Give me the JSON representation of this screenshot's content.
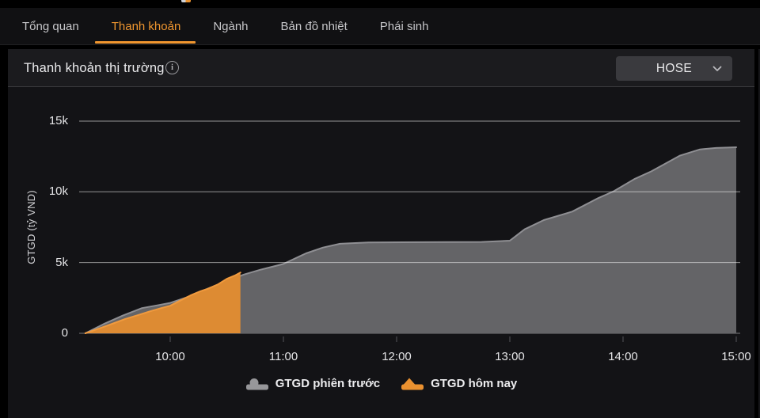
{
  "tabs": [
    {
      "label": "Tổng quan",
      "active": false
    },
    {
      "label": "Thanh khoản",
      "active": true
    },
    {
      "label": "Ngành",
      "active": false
    },
    {
      "label": "Bản đồ nhiệt",
      "active": false
    },
    {
      "label": "Phái sinh",
      "active": false
    }
  ],
  "panel": {
    "title": "Thanh khoản thị trường",
    "info_icon": "i",
    "market_selector": {
      "value": "HOSE"
    }
  },
  "colors": {
    "accent": "#f0962f",
    "panel_bg": "#131316",
    "header_bg": "#1b1b1e",
    "gridline": "rgba(255,255,255,0.55)",
    "axis_text": "#e4e4e6"
  },
  "chart_data": {
    "type": "area",
    "title": "Thanh khoản thị trường",
    "xlabel": "",
    "ylabel": "GTGD (tỷ VND)",
    "ylim": [
      0,
      15000
    ],
    "xlim_hours": [
      9.2,
      15.05
    ],
    "grid": "horizontal",
    "legend_position": "bottom-center",
    "yticks": [
      {
        "value": 0,
        "label": "0"
      },
      {
        "value": 5000,
        "label": "5k"
      },
      {
        "value": 10000,
        "label": "10k"
      },
      {
        "value": 15000,
        "label": "15k"
      }
    ],
    "xticks": [
      {
        "hour": 10,
        "label": "10:00"
      },
      {
        "hour": 11,
        "label": "11:00"
      },
      {
        "hour": 12,
        "label": "12:00"
      },
      {
        "hour": 13,
        "label": "13:00"
      },
      {
        "hour": 14,
        "label": "14:00"
      },
      {
        "hour": 15,
        "label": "15:00"
      }
    ],
    "series": [
      {
        "name": "GTGD phiên trước",
        "marker": "circle",
        "fill": "#646467",
        "line": "#8f8f93",
        "legend_color": "#97979a",
        "points": [
          [
            9.25,
            0
          ],
          [
            9.42,
            680
          ],
          [
            9.58,
            1250
          ],
          [
            9.75,
            1780
          ],
          [
            9.9,
            2000
          ],
          [
            10.0,
            2150
          ],
          [
            10.17,
            2600
          ],
          [
            10.33,
            3150
          ],
          [
            10.5,
            3680
          ],
          [
            10.65,
            4150
          ],
          [
            10.8,
            4500
          ],
          [
            11.0,
            4900
          ],
          [
            11.2,
            5650
          ],
          [
            11.35,
            6060
          ],
          [
            11.5,
            6330
          ],
          [
            11.75,
            6420
          ],
          [
            12.25,
            6440
          ],
          [
            12.75,
            6460
          ],
          [
            13.0,
            6550
          ],
          [
            13.13,
            7350
          ],
          [
            13.3,
            8000
          ],
          [
            13.55,
            8600
          ],
          [
            13.78,
            9550
          ],
          [
            13.92,
            10050
          ],
          [
            14.1,
            10900
          ],
          [
            14.25,
            11450
          ],
          [
            14.5,
            12550
          ],
          [
            14.68,
            13000
          ],
          [
            14.82,
            13100
          ],
          [
            15.0,
            13150
          ]
        ]
      },
      {
        "name": "GTGD hôm nay",
        "marker": "diamond",
        "fill": "#dd8b33",
        "line": "#f09a3e",
        "legend_color": "#ea9130",
        "points": [
          [
            9.25,
            0
          ],
          [
            9.45,
            560
          ],
          [
            9.6,
            1000
          ],
          [
            9.72,
            1300
          ],
          [
            9.82,
            1550
          ],
          [
            9.92,
            1780
          ],
          [
            10.0,
            1950
          ],
          [
            10.08,
            2280
          ],
          [
            10.18,
            2680
          ],
          [
            10.27,
            2980
          ],
          [
            10.33,
            3140
          ],
          [
            10.42,
            3450
          ],
          [
            10.5,
            3850
          ],
          [
            10.57,
            4080
          ],
          [
            10.62,
            4290
          ]
        ]
      }
    ]
  }
}
